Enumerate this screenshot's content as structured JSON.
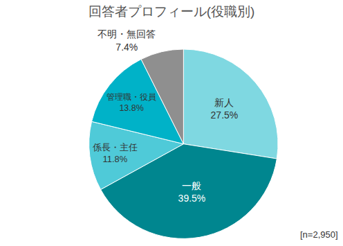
{
  "chart_data": {
    "type": "pie",
    "title": "回答者プロフィール(役職別)",
    "categories": [
      "新人",
      "一般",
      "係長・主任",
      "管理職・役員",
      "不明・無回答"
    ],
    "values": [
      27.5,
      39.5,
      11.8,
      13.8,
      7.4
    ],
    "value_labels": [
      "27.5%",
      "39.5%",
      "11.8%",
      "13.8%",
      "7.4%"
    ],
    "colors": [
      "#7fd8e1",
      "#00868f",
      "#4fcad8",
      "#00b2c8",
      "#8f8f8f"
    ],
    "data_labels": true,
    "annotation": "[n=2,950]"
  }
}
